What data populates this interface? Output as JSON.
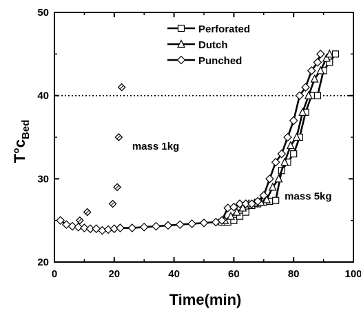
{
  "chart_data": {
    "type": "line",
    "xlabel": "Time(min)",
    "ylabel_main": "T°c",
    "ylabel_sub": "Bed",
    "xlim": [
      0,
      100
    ],
    "ylim": [
      20,
      50
    ],
    "xticks": [
      0,
      20,
      40,
      60,
      80,
      100
    ],
    "yticks": [
      20,
      30,
      40,
      50
    ],
    "xtick_labels": [
      "0",
      "20",
      "40",
      "60",
      "80",
      "100"
    ],
    "ytick_labels": [
      "20",
      "30",
      "40",
      "50"
    ],
    "reference_line": {
      "y": 40,
      "style": "dotted"
    },
    "legend_position": "top-center",
    "series": [
      {
        "name": "Perforated",
        "marker": "square",
        "x": [
          56,
          58,
          60,
          62,
          64,
          66,
          68,
          70,
          72,
          74,
          76,
          78,
          80,
          82,
          84,
          86,
          88,
          90,
          92,
          94
        ],
        "y": [
          24.8,
          24.8,
          25.0,
          25.5,
          26.0,
          26.8,
          27.0,
          27.2,
          27.3,
          27.4,
          31.0,
          32.0,
          33.0,
          35.0,
          38.0,
          40.0,
          40.0,
          43.0,
          44.0,
          45.0
        ]
      },
      {
        "name": "Dutch",
        "marker": "triangle",
        "x": [
          57,
          59,
          61,
          63,
          65,
          67,
          69,
          71,
          73,
          75,
          77,
          79,
          81,
          83,
          85,
          87,
          89,
          91,
          92
        ],
        "y": [
          25.0,
          25.5,
          26.0,
          26.5,
          27.0,
          27.1,
          27.2,
          27.5,
          29.0,
          30.0,
          32.0,
          34.0,
          35.0,
          38.0,
          40.0,
          42.0,
          43.0,
          44.5,
          45.0
        ]
      },
      {
        "name": "Punched",
        "marker": "diamond",
        "x": [
          2,
          4,
          6,
          8,
          10,
          12,
          14,
          16,
          18,
          20,
          22,
          26,
          30,
          34,
          38,
          42,
          46,
          50,
          54,
          56,
          58,
          60,
          62,
          64,
          66,
          68,
          70,
          72,
          74,
          76,
          78,
          80,
          82,
          84,
          86,
          88,
          89
        ],
        "y": [
          25.0,
          24.5,
          24.3,
          24.2,
          24.1,
          24.0,
          24.0,
          23.8,
          23.9,
          24.0,
          24.1,
          24.1,
          24.2,
          24.3,
          24.4,
          24.5,
          24.6,
          24.7,
          24.8,
          25.0,
          26.5,
          26.6,
          27.0,
          27.0,
          27.0,
          27.3,
          28.0,
          30.0,
          32.0,
          33.0,
          35.0,
          37.0,
          40.0,
          41.0,
          43.0,
          44.0,
          45.0
        ]
      }
    ],
    "mass1kg_points": {
      "marker": "diamond-hatched",
      "x": [
        8.5,
        11,
        19.5,
        21,
        21.5,
        22.5
      ],
      "y": [
        25,
        26,
        27,
        29,
        35,
        41
      ]
    },
    "annotations": [
      {
        "text": "mass 1kg",
        "x": 26,
        "y": 33.5
      },
      {
        "text": "mass 5kg",
        "x": 77,
        "y": 27.5
      }
    ]
  }
}
